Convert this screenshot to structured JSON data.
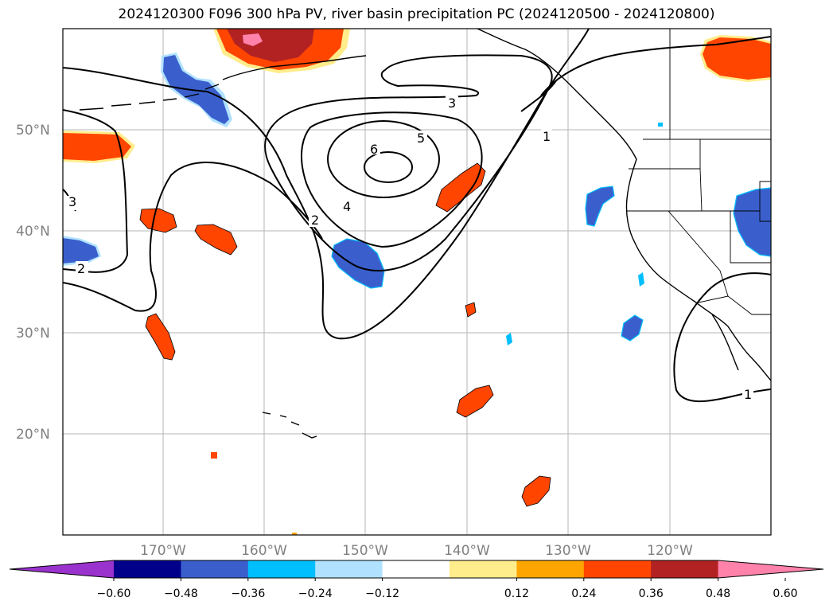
{
  "title": "2024120300 F096 300 hPa PV, river basin precipitation PC (2024120500 - 2024120800)",
  "lat_labels": [
    "50°N",
    "40°N",
    "30°N",
    "20°N"
  ],
  "lon_labels": [
    "170°W",
    "160°W",
    "150°W",
    "140°W",
    "130°W",
    "120°W"
  ],
  "colorbar": {
    "tick_labels": [
      "−0.60",
      "−0.48",
      "−0.36",
      "−0.24",
      "−0.12",
      "0.12",
      "0.24",
      "0.36",
      "0.48",
      "0.60"
    ],
    "colors": [
      "#9a32cd",
      "#00008b",
      "#3a5fcd",
      "#00bfff",
      "#b0e2ff",
      "#ffffff",
      "#ffec8b",
      "#ffa500",
      "#ff4500",
      "#b22222",
      "#ff82ab"
    ]
  },
  "contour_labels": [
    "6",
    "5",
    "4",
    "3",
    "2",
    "2",
    "3",
    "1",
    "1"
  ]
}
